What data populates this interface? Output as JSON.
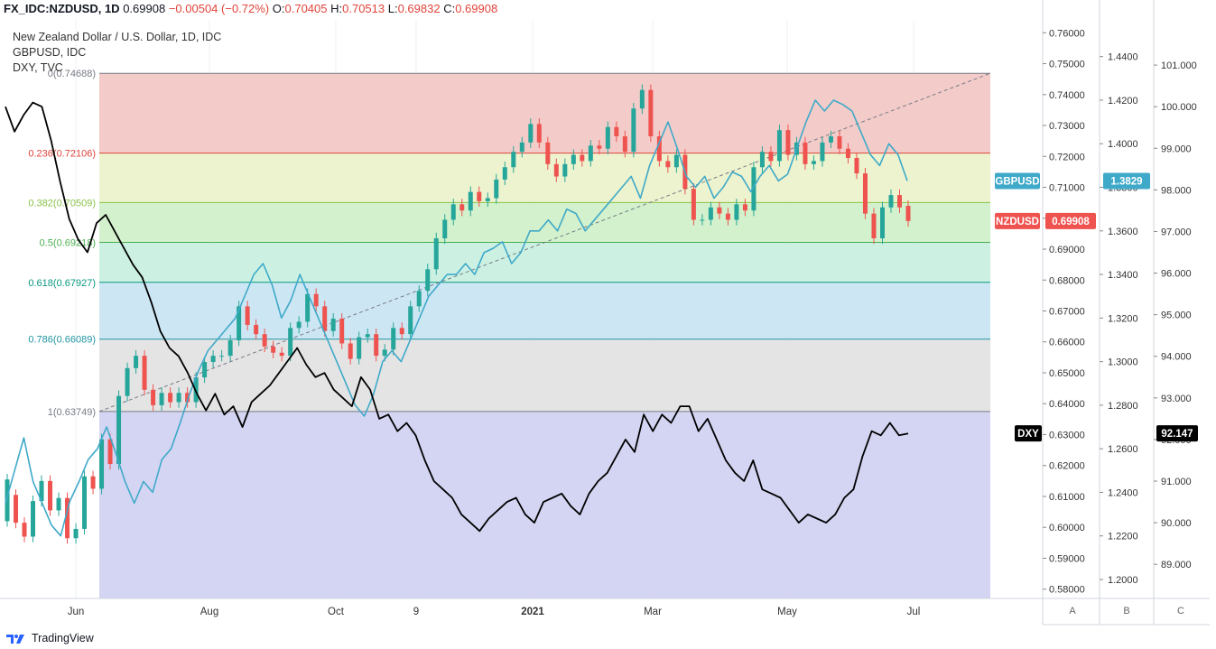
{
  "header": {
    "symbol": "FX_IDC:NZDUSD, 1D",
    "last": "0.69908",
    "change": "−0.00504 (−0.72%)",
    "o_label": "O:",
    "o": "0.70405",
    "h_label": "H:",
    "h": "0.70513",
    "l_label": "L:",
    "l": "0.69832",
    "c_label": "C:",
    "c": "0.69908"
  },
  "legends": [
    "New Zealand Dollar / U.S. Dollar, 1D, IDC",
    "GBPUSD, IDC",
    "DXY, TVC"
  ],
  "badges": {
    "gbpusd_name": "GBPUSD",
    "gbpusd_value": "1.3829",
    "nzdusd_name": "NZDUSD",
    "nzdusd_value": "0.69908",
    "dxy_name": "DXY",
    "dxy_value": "92.147"
  },
  "scale_buttons": [
    "A",
    "B",
    "C"
  ],
  "footer": {
    "brand": "TradingView"
  },
  "colors": {
    "up": "#26a69a",
    "down": "#ef5350",
    "gbp": "#3fa9c9",
    "dxy": "#000000"
  },
  "chart_data": {
    "type": "line",
    "title": "New Zealand Dollar / U.S. Dollar, 1D, IDC",
    "x_ticks": [
      "Jun",
      "Aug",
      "Oct",
      "9",
      "2021",
      "Mar",
      "May",
      "Jul"
    ],
    "axis_a": {
      "label": "NZDUSD",
      "ticks": [
        "0.76000",
        "0.75000",
        "0.74000",
        "0.73000",
        "0.72000",
        "0.71000",
        "0.70000",
        "0.69000",
        "0.68000",
        "0.67000",
        "0.66000",
        "0.65000",
        "0.64000",
        "0.63000",
        "0.62000",
        "0.61000",
        "0.60000",
        "0.59000",
        "0.58000"
      ],
      "ylim": [
        0.577,
        0.763
      ]
    },
    "axis_b": {
      "label": "GBPUSD",
      "ticks": [
        "1.4400",
        "1.4200",
        "1.4000",
        "1.3800",
        "1.3600",
        "1.3400",
        "1.3200",
        "1.3000",
        "1.2800",
        "1.2600",
        "1.2400",
        "1.2200",
        "1.2000"
      ],
      "ylim": [
        1.1913,
        1.4552
      ]
    },
    "axis_c": {
      "label": "DXY",
      "ticks": [
        "101.000",
        "100.000",
        "99.000",
        "98.000",
        "97.000",
        "96.000",
        "95.000",
        "94.000",
        "93.000",
        "92.000",
        "91.000",
        "90.000",
        "89.000"
      ],
      "ylim": [
        88.18,
        102.0
      ]
    },
    "fib_levels": [
      {
        "ratio": 0,
        "label": "0(0.74688)",
        "price": 0.74688,
        "color": "#787b86",
        "fill": "#f2c6c3"
      },
      {
        "ratio": 0.236,
        "label": "0.236(0.72106)",
        "price": 0.72106,
        "color": "#e0443a",
        "fill": "#eaf2c9"
      },
      {
        "ratio": 0.382,
        "label": "0.382(0.70509)",
        "price": 0.70509,
        "color": "#8bc34a",
        "fill": "#cdefc6"
      },
      {
        "ratio": 0.5,
        "label": "0.5(0.69218)",
        "price": 0.69218,
        "color": "#4caf50",
        "fill": "#c6efe0"
      },
      {
        "ratio": 0.618,
        "label": "0.618(0.67927)",
        "price": 0.67927,
        "color": "#089981",
        "fill": "#c6e4f2"
      },
      {
        "ratio": 0.786,
        "label": "0.786(0.66089)",
        "price": 0.66089,
        "color": "#2196a3",
        "fill": "#e1e1e1"
      },
      {
        "ratio": 1,
        "label": "1(0.63749)",
        "price": 0.63749,
        "color": "#787b86",
        "fill": "#cfd0f2"
      }
    ],
    "series": [
      {
        "name": "NZDUSD",
        "axis": "A",
        "kind": "candles",
        "points": [
          [
            0.602,
            0.6155
          ],
          [
            0.6105,
            0.6015
          ],
          [
            0.6015,
            0.597
          ],
          [
            0.597,
            0.6085
          ],
          [
            0.6085,
            0.615
          ],
          [
            0.615,
            0.6055
          ],
          [
            0.6055,
            0.6095
          ],
          [
            0.6095,
            0.5965
          ],
          [
            0.5965,
            0.5995
          ],
          [
            0.5995,
            0.6165
          ],
          [
            0.6165,
            0.6125
          ],
          [
            0.6125,
            0.6285
          ],
          [
            0.6285,
            0.6205
          ],
          [
            0.6205,
            0.6425
          ],
          [
            0.6425,
            0.6515
          ],
          [
            0.6515,
            0.6555
          ],
          [
            0.6555,
            0.6445
          ],
          [
            0.6445,
            0.6395
          ],
          [
            0.6395,
            0.6435
          ],
          [
            0.6435,
            0.6405
          ],
          [
            0.6405,
            0.6435
          ],
          [
            0.6435,
            0.6405
          ],
          [
            0.6405,
            0.6485
          ],
          [
            0.6485,
            0.6535
          ],
          [
            0.6535,
            0.6555
          ],
          [
            0.6555,
            0.6555
          ],
          [
            0.6555,
            0.6605
          ],
          [
            0.6605,
            0.6715
          ],
          [
            0.6715,
            0.6655
          ],
          [
            0.6655,
            0.6625
          ],
          [
            0.6625,
            0.6585
          ],
          [
            0.6585,
            0.6565
          ],
          [
            0.6565,
            0.6555
          ],
          [
            0.6555,
            0.6645
          ],
          [
            0.6645,
            0.6665
          ],
          [
            0.6665,
            0.6755
          ],
          [
            0.6755,
            0.6715
          ],
          [
            0.6715,
            0.6635
          ],
          [
            0.6635,
            0.6675
          ],
          [
            0.6675,
            0.6595
          ],
          [
            0.6595,
            0.6545
          ],
          [
            0.6545,
            0.6615
          ],
          [
            0.6615,
            0.6625
          ],
          [
            0.6625,
            0.6555
          ],
          [
            0.6555,
            0.6575
          ],
          [
            0.6575,
            0.6645
          ],
          [
            0.6645,
            0.6625
          ],
          [
            0.6625,
            0.6715
          ],
          [
            0.6715,
            0.6765
          ],
          [
            0.6765,
            0.6835
          ],
          [
            0.6835,
            0.6935
          ],
          [
            0.6935,
            0.6995
          ],
          [
            0.6995,
            0.7045
          ],
          [
            0.7045,
            0.7025
          ],
          [
            0.7025,
            0.7085
          ],
          [
            0.7085,
            0.7055
          ],
          [
            0.7055,
            0.7065
          ],
          [
            0.7065,
            0.7125
          ],
          [
            0.7125,
            0.7165
          ],
          [
            0.7165,
            0.7215
          ],
          [
            0.7215,
            0.7245
          ],
          [
            0.7245,
            0.7305
          ],
          [
            0.7305,
            0.7245
          ],
          [
            0.7245,
            0.7175
          ],
          [
            0.7175,
            0.7135
          ],
          [
            0.7135,
            0.7175
          ],
          [
            0.7175,
            0.7205
          ],
          [
            0.7205,
            0.7185
          ],
          [
            0.7185,
            0.7235
          ],
          [
            0.7235,
            0.7225
          ],
          [
            0.7225,
            0.7295
          ],
          [
            0.7295,
            0.7265
          ],
          [
            0.7265,
            0.7215
          ],
          [
            0.7215,
            0.7355
          ],
          [
            0.7355,
            0.7415
          ],
          [
            0.7415,
            0.7265
          ],
          [
            0.7265,
            0.7185
          ],
          [
            0.7185,
            0.7165
          ],
          [
            0.7165,
            0.7205
          ],
          [
            0.7205,
            0.7095
          ],
          [
            0.7095,
            0.6995
          ],
          [
            0.6995,
            0.6995
          ],
          [
            0.6995,
            0.7035
          ],
          [
            0.7035,
            0.7015
          ],
          [
            0.7015,
            0.6995
          ],
          [
            0.6995,
            0.7045
          ],
          [
            0.7045,
            0.7025
          ],
          [
            0.7025,
            0.7165
          ],
          [
            0.7165,
            0.7215
          ],
          [
            0.7215,
            0.7185
          ],
          [
            0.7185,
            0.7285
          ],
          [
            0.7285,
            0.7205
          ],
          [
            0.7205,
            0.7245
          ],
          [
            0.7245,
            0.7175
          ],
          [
            0.7175,
            0.7185
          ],
          [
            0.7185,
            0.7245
          ],
          [
            0.7245,
            0.7265
          ],
          [
            0.7265,
            0.7225
          ],
          [
            0.7225,
            0.7195
          ],
          [
            0.7195,
            0.7145
          ],
          [
            0.7145,
            0.7015
          ],
          [
            0.7015,
            0.6935
          ],
          [
            0.6935,
            0.7035
          ],
          [
            0.7035,
            0.7075
          ],
          [
            0.7075,
            0.7035
          ],
          [
            0.704,
            0.6991
          ]
        ]
      },
      {
        "name": "GBPUSD",
        "axis": "B",
        "kind": "line",
        "points": [
          1.235,
          1.25,
          1.265,
          1.245,
          1.235,
          1.225,
          1.22,
          1.236,
          1.245,
          1.255,
          1.26,
          1.27,
          1.258,
          1.245,
          1.235,
          1.245,
          1.24,
          1.255,
          1.26,
          1.272,
          1.285,
          1.296,
          1.305,
          1.31,
          1.315,
          1.32,
          1.33,
          1.34,
          1.345,
          1.335,
          1.32,
          1.328,
          1.34,
          1.33,
          1.32,
          1.31,
          1.3,
          1.29,
          1.28,
          1.275,
          1.285,
          1.3,
          1.305,
          1.3,
          1.31,
          1.32,
          1.33,
          1.335,
          1.34,
          1.34,
          1.345,
          1.34,
          1.35,
          1.352,
          1.355,
          1.345,
          1.35,
          1.36,
          1.36,
          1.365,
          1.36,
          1.37,
          1.368,
          1.36,
          1.365,
          1.37,
          1.375,
          1.38,
          1.385,
          1.375,
          1.39,
          1.4,
          1.41,
          1.398,
          1.385,
          1.38,
          1.385,
          1.375,
          1.38,
          1.387,
          1.385,
          1.378,
          1.385,
          1.39,
          1.383,
          1.386,
          1.398,
          1.41,
          1.42,
          1.415,
          1.42,
          1.418,
          1.415,
          1.405,
          1.395,
          1.39,
          1.4,
          1.395,
          1.383
        ]
      },
      {
        "name": "DXY",
        "axis": "C",
        "kind": "line",
        "points": [
          100.0,
          99.4,
          99.8,
          100.1,
          100.0,
          99.2,
          98.2,
          97.3,
          96.8,
          96.5,
          97.2,
          97.4,
          97.0,
          96.6,
          96.2,
          95.9,
          95.3,
          94.6,
          94.2,
          94.0,
          93.6,
          93.1,
          92.7,
          93.1,
          92.6,
          92.8,
          92.3,
          92.9,
          93.1,
          93.3,
          93.6,
          93.9,
          94.2,
          93.8,
          93.5,
          93.6,
          93.2,
          93.0,
          92.8,
          93.5,
          93.2,
          92.5,
          92.6,
          92.2,
          92.4,
          92.1,
          91.5,
          91.0,
          90.8,
          90.6,
          90.2,
          90.0,
          89.8,
          90.1,
          90.3,
          90.5,
          90.6,
          90.2,
          90.0,
          90.5,
          90.6,
          90.7,
          90.4,
          90.2,
          90.7,
          91.0,
          91.2,
          91.6,
          92.0,
          91.7,
          92.6,
          92.2,
          92.6,
          92.4,
          92.8,
          92.8,
          92.2,
          92.5,
          92.0,
          91.5,
          91.2,
          91.0,
          91.5,
          90.8,
          90.7,
          90.6,
          90.3,
          90.0,
          90.2,
          90.1,
          90.0,
          90.2,
          90.6,
          90.8,
          91.6,
          92.2,
          92.1,
          92.4,
          92.1,
          92.147
        ]
      }
    ]
  }
}
